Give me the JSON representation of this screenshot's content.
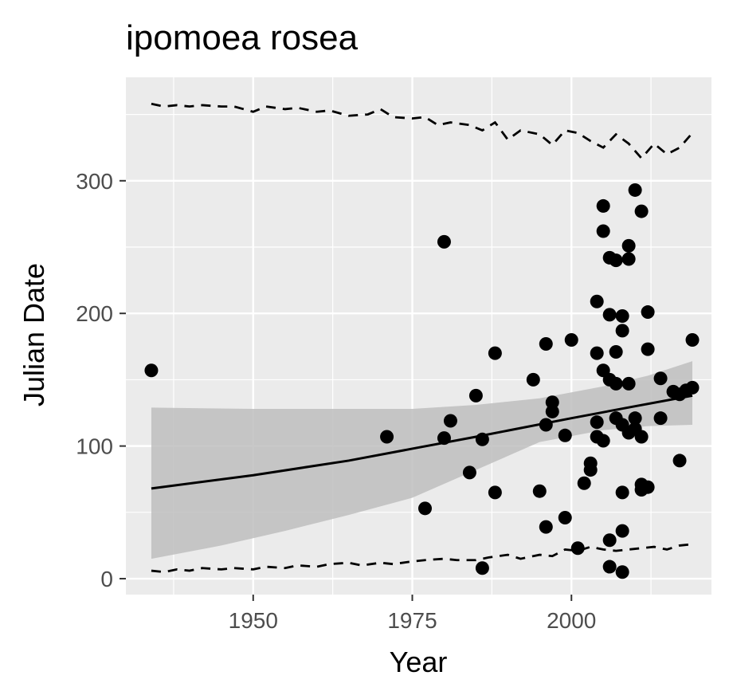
{
  "chart_data": {
    "type": "scatter",
    "title": "ipomoea rosea",
    "xlabel": "Year",
    "ylabel": "Julian Date",
    "xlim": [
      1930,
      2022
    ],
    "ylim": [
      -12,
      378
    ],
    "x_ticks": [
      1950,
      1975,
      2000
    ],
    "y_ticks": [
      0,
      100,
      200,
      300
    ],
    "grid": true,
    "legend": "none",
    "colors": {
      "panel": "#ebebeb",
      "grid": "#ffffff",
      "points": "#000000",
      "ribbon": "#bebebe",
      "tick_label": "#4d4d4d"
    },
    "points": [
      [
        1934,
        157
      ],
      [
        1971,
        107
      ],
      [
        1977,
        53
      ],
      [
        1980,
        254
      ],
      [
        1980,
        106
      ],
      [
        1981,
        119
      ],
      [
        1984,
        80
      ],
      [
        1985,
        138
      ],
      [
        1986,
        105
      ],
      [
        1986,
        8
      ],
      [
        1988,
        170
      ],
      [
        1988,
        65
      ],
      [
        1994,
        150
      ],
      [
        1995,
        66
      ],
      [
        1996,
        177
      ],
      [
        1996,
        116
      ],
      [
        1996,
        39
      ],
      [
        1997,
        133
      ],
      [
        1997,
        126
      ],
      [
        1999,
        108
      ],
      [
        1999,
        46
      ],
      [
        2000,
        180
      ],
      [
        2001,
        23
      ],
      [
        2002,
        72
      ],
      [
        2003,
        87
      ],
      [
        2003,
        82
      ],
      [
        2004,
        209
      ],
      [
        2004,
        170
      ],
      [
        2004,
        118
      ],
      [
        2004,
        107
      ],
      [
        2005,
        281
      ],
      [
        2005,
        262
      ],
      [
        2005,
        157
      ],
      [
        2005,
        104
      ],
      [
        2006,
        242
      ],
      [
        2006,
        199
      ],
      [
        2006,
        150
      ],
      [
        2006,
        29
      ],
      [
        2006,
        9
      ],
      [
        2007,
        240
      ],
      [
        2007,
        171
      ],
      [
        2007,
        147
      ],
      [
        2007,
        121
      ],
      [
        2008,
        198
      ],
      [
        2008,
        187
      ],
      [
        2008,
        116
      ],
      [
        2008,
        65
      ],
      [
        2008,
        36
      ],
      [
        2008,
        5
      ],
      [
        2009,
        251
      ],
      [
        2009,
        241
      ],
      [
        2009,
        147
      ],
      [
        2009,
        110
      ],
      [
        2010,
        293
      ],
      [
        2010,
        121
      ],
      [
        2010,
        113
      ],
      [
        2011,
        277
      ],
      [
        2011,
        107
      ],
      [
        2011,
        71
      ],
      [
        2011,
        67
      ],
      [
        2012,
        201
      ],
      [
        2012,
        173
      ],
      [
        2012,
        69
      ],
      [
        2014,
        151
      ],
      [
        2014,
        121
      ],
      [
        2016,
        141
      ],
      [
        2017,
        89
      ],
      [
        2017,
        139
      ],
      [
        2018,
        142
      ],
      [
        2019,
        180
      ],
      [
        2019,
        144
      ]
    ],
    "fit_line": [
      [
        1934,
        68
      ],
      [
        1950,
        78
      ],
      [
        1965,
        89
      ],
      [
        1975,
        98
      ],
      [
        1985,
        107
      ],
      [
        2000,
        121
      ],
      [
        2010,
        130
      ],
      [
        2019,
        138
      ]
    ],
    "ribbon_upper": [
      [
        1934,
        129
      ],
      [
        1950,
        128
      ],
      [
        1965,
        128
      ],
      [
        1975,
        128
      ],
      [
        1985,
        131
      ],
      [
        1995,
        136
      ],
      [
        2005,
        145
      ],
      [
        2012,
        153
      ],
      [
        2019,
        164
      ]
    ],
    "ribbon_lower": [
      [
        1934,
        15
      ],
      [
        1945,
        25
      ],
      [
        1955,
        36
      ],
      [
        1965,
        48
      ],
      [
        1975,
        61
      ],
      [
        1985,
        82
      ],
      [
        1995,
        103
      ],
      [
        2005,
        112
      ],
      [
        2012,
        115
      ],
      [
        2019,
        116
      ]
    ],
    "upper_bound": [
      [
        1934,
        358
      ],
      [
        1936,
        356
      ],
      [
        1938,
        357
      ],
      [
        1940,
        356
      ],
      [
        1942,
        357
      ],
      [
        1945,
        356
      ],
      [
        1947,
        356
      ],
      [
        1950,
        352
      ],
      [
        1952,
        356
      ],
      [
        1955,
        354
      ],
      [
        1957,
        355
      ],
      [
        1960,
        352
      ],
      [
        1962,
        353
      ],
      [
        1965,
        349
      ],
      [
        1968,
        350
      ],
      [
        1970,
        354
      ],
      [
        1972,
        348
      ],
      [
        1975,
        347
      ],
      [
        1977,
        348
      ],
      [
        1979,
        342
      ],
      [
        1981,
        344
      ],
      [
        1984,
        342
      ],
      [
        1986,
        338
      ],
      [
        1988,
        344
      ],
      [
        1990,
        331
      ],
      [
        1992,
        338
      ],
      [
        1995,
        335
      ],
      [
        1997,
        327
      ],
      [
        1999,
        338
      ],
      [
        2001,
        336
      ],
      [
        2003,
        330
      ],
      [
        2005,
        325
      ],
      [
        2007,
        335
      ],
      [
        2009,
        328
      ],
      [
        2011,
        317
      ],
      [
        2013,
        328
      ],
      [
        2015,
        320
      ],
      [
        2017,
        325
      ],
      [
        2019,
        336
      ]
    ],
    "lower_bound": [
      [
        1934,
        6
      ],
      [
        1936,
        5
      ],
      [
        1938,
        7
      ],
      [
        1940,
        6
      ],
      [
        1942,
        8
      ],
      [
        1945,
        7
      ],
      [
        1947,
        8
      ],
      [
        1950,
        7
      ],
      [
        1952,
        9
      ],
      [
        1955,
        8
      ],
      [
        1957,
        10
      ],
      [
        1960,
        9
      ],
      [
        1962,
        11
      ],
      [
        1965,
        12
      ],
      [
        1967,
        10
      ],
      [
        1970,
        12
      ],
      [
        1972,
        11
      ],
      [
        1975,
        13
      ],
      [
        1977,
        14
      ],
      [
        1980,
        15
      ],
      [
        1982,
        14
      ],
      [
        1985,
        14
      ],
      [
        1987,
        16
      ],
      [
        1990,
        18
      ],
      [
        1992,
        15
      ],
      [
        1995,
        18
      ],
      [
        1997,
        17
      ],
      [
        1999,
        22
      ],
      [
        2001,
        21
      ],
      [
        2003,
        24
      ],
      [
        2005,
        22
      ],
      [
        2007,
        21
      ],
      [
        2009,
        22
      ],
      [
        2011,
        23
      ],
      [
        2013,
        24
      ],
      [
        2015,
        22
      ],
      [
        2017,
        25
      ],
      [
        2019,
        26
      ]
    ]
  }
}
